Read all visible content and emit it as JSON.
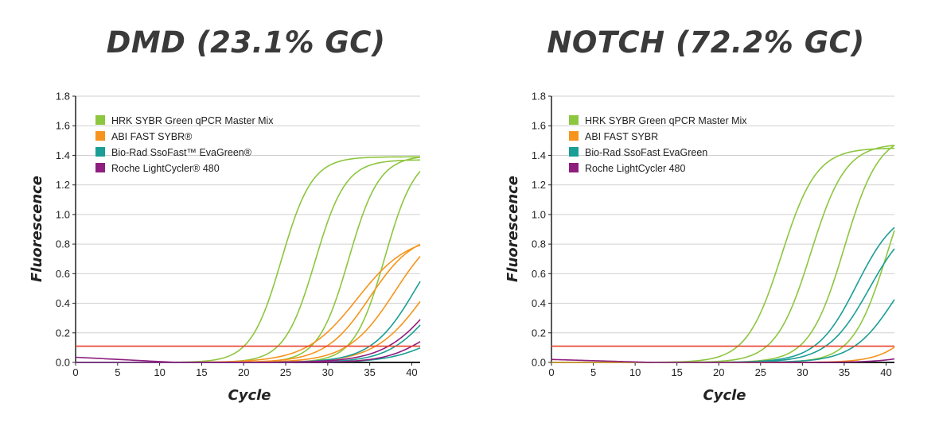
{
  "colors": {
    "hrk": "#8dc63f",
    "abi": "#f7941d",
    "biorad": "#1a9e95",
    "roche": "#8e1f7f",
    "threshold": "#e8412a",
    "grid": "#d0d0d0",
    "axis": "#222222"
  },
  "chart_data": [
    {
      "type": "line",
      "title": "DMD (23.1% GC)",
      "xlabel": "Cycle",
      "ylabel": "Fluorescence",
      "xlim": [
        0,
        41
      ],
      "ylim": [
        0,
        1.8
      ],
      "xticks": [
        0,
        5,
        10,
        15,
        20,
        25,
        30,
        35,
        40
      ],
      "yticks": [
        "0.0",
        "0.2",
        "0.4",
        "0.6",
        "0.8",
        "1.0",
        "1.2",
        "1.4",
        "1.6",
        "1.8"
      ],
      "grid": "horizontal",
      "legend_position": "top-left",
      "legend": [
        {
          "label": "HRK SYBR Green qPCR Master Mix",
          "color": "#8dc63f"
        },
        {
          "label": "ABI FAST SYBR®",
          "color": "#f7941d"
        },
        {
          "label": "Bio-Rad SsoFast™ EvaGreen®",
          "color": "#1a9e95"
        },
        {
          "label": "Roche LightCycler® 480",
          "color": "#8e1f7f"
        }
      ],
      "threshold": 0.11,
      "series": [
        {
          "color": "#8dc63f",
          "plateau": 1.39,
          "mid": 24.5,
          "k": 0.55,
          "start": 0
        },
        {
          "color": "#8dc63f",
          "plateau": 1.37,
          "mid": 28.5,
          "k": 0.55,
          "start": 0
        },
        {
          "color": "#8dc63f",
          "plateau": 1.4,
          "mid": 32.5,
          "k": 0.55,
          "start": 0
        },
        {
          "color": "#8dc63f",
          "plateau": 1.42,
          "mid": 36.8,
          "k": 0.55,
          "start": 0
        },
        {
          "color": "#f7941d",
          "plateau": 0.86,
          "mid": 33.5,
          "k": 0.33,
          "start": 0
        },
        {
          "color": "#f7941d",
          "plateau": 0.88,
          "mid": 35.0,
          "k": 0.38,
          "start": 0
        },
        {
          "color": "#f7941d",
          "plateau": 0.96,
          "mid": 38.0,
          "k": 0.36,
          "start": 0
        },
        {
          "color": "#f7941d",
          "plateau": 0.9,
          "mid": 41.5,
          "k": 0.34,
          "start": 0
        },
        {
          "color": "#1a9e95",
          "plateau": 1.0,
          "mid": 40.5,
          "k": 0.38,
          "start": 0
        },
        {
          "color": "#1a9e95",
          "plateau": 0.7,
          "mid": 42.5,
          "k": 0.38,
          "start": 0
        },
        {
          "color": "#1a9e95",
          "plateau": 0.3,
          "mid": 43.0,
          "k": 0.36,
          "start": 0
        },
        {
          "color": "#8e1f7f",
          "plateau": 0.85,
          "mid": 43.0,
          "k": 0.33,
          "start": 0.035
        },
        {
          "color": "#8e1f7f",
          "plateau": 0.35,
          "mid": 42.0,
          "k": 0.4,
          "start": 0
        }
      ]
    },
    {
      "type": "line",
      "title": "NOTCH (72.2% GC)",
      "xlabel": "Cycle",
      "ylabel": "Fluorescence",
      "xlim": [
        0,
        41
      ],
      "ylim": [
        0,
        1.8
      ],
      "xticks": [
        0,
        5,
        10,
        15,
        20,
        25,
        30,
        35,
        40
      ],
      "yticks": [
        "0.0",
        "0.2",
        "0.4",
        "0.6",
        "0.8",
        "1.0",
        "1.2",
        "1.4",
        "1.6",
        "1.8"
      ],
      "grid": "horizontal",
      "legend_position": "top-left",
      "legend": [
        {
          "label": "HRK SYBR Green qPCR Master Mix",
          "color": "#8dc63f"
        },
        {
          "label": "ABI FAST SYBR",
          "color": "#f7941d"
        },
        {
          "label": "Bio-Rad SsoFast EvaGreen",
          "color": "#1a9e95"
        },
        {
          "label": "Roche LightCycler 480",
          "color": "#8e1f7f"
        }
      ],
      "threshold": 0.11,
      "series": [
        {
          "color": "#8dc63f",
          "plateau": 1.45,
          "mid": 27.5,
          "k": 0.48,
          "start": 0
        },
        {
          "color": "#8dc63f",
          "plateau": 1.48,
          "mid": 31.0,
          "k": 0.48,
          "start": 0
        },
        {
          "color": "#8dc63f",
          "plateau": 1.55,
          "mid": 35.0,
          "k": 0.48,
          "start": 0
        },
        {
          "color": "#8dc63f",
          "plateau": 1.5,
          "mid": 40.2,
          "k": 0.48,
          "start": 0
        },
        {
          "color": "#1a9e95",
          "plateau": 1.05,
          "mid": 36.5,
          "k": 0.42,
          "start": 0
        },
        {
          "color": "#1a9e95",
          "plateau": 1.0,
          "mid": 38.0,
          "k": 0.4,
          "start": 0
        },
        {
          "color": "#1a9e95",
          "plateau": 0.85,
          "mid": 41.0,
          "k": 0.4,
          "start": 0
        },
        {
          "color": "#f7941d",
          "plateau": 0.6,
          "mid": 44.5,
          "k": 0.45,
          "start": 0
        },
        {
          "color": "#8e1f7f",
          "plateau": 0.2,
          "mid": 46.0,
          "k": 0.4,
          "start": 0.02
        }
      ]
    }
  ]
}
